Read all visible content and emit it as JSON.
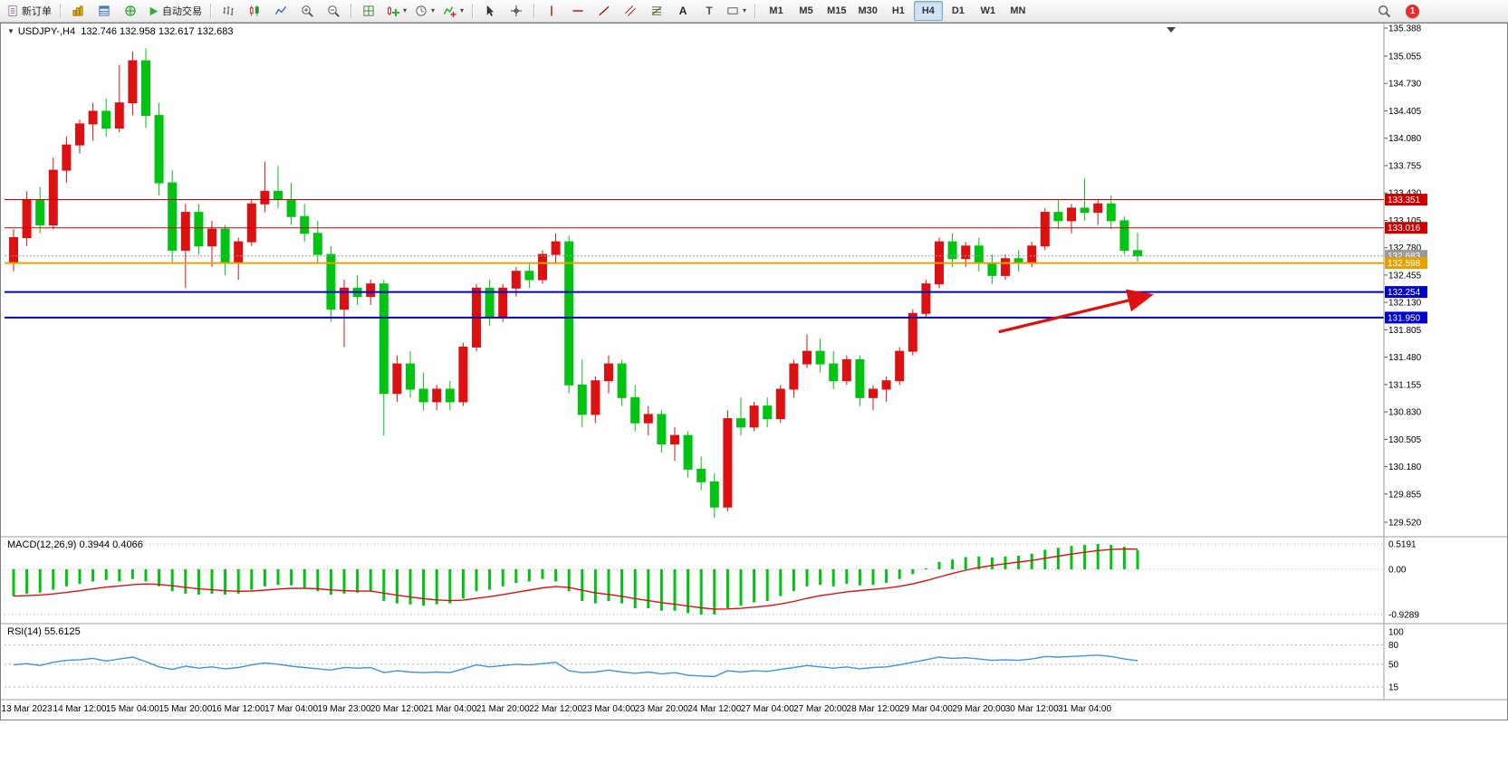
{
  "toolbar": {
    "new_order_label": "新订单",
    "autotrade_label": "自动交易",
    "timeframes": [
      "M1",
      "M5",
      "M15",
      "M30",
      "H1",
      "H4",
      "D1",
      "W1",
      "MN"
    ],
    "active_timeframe": "H4",
    "badge_count": "1"
  },
  "icons": {
    "caret": "▾",
    "collapse": "▼",
    "text_tool": "A",
    "label_tool": "T"
  },
  "chart": {
    "symbol_header": {
      "symbol": "USDJPY-,H4",
      "ohlc": "132.746 132.958 132.617 132.683"
    }
  },
  "chart_data": {
    "type": "candlestick",
    "symbol": "USDJPY-,H4",
    "timeframe": "H4",
    "colors": {
      "up": "#dd1111",
      "down": "#00c411",
      "background": "#ffffff",
      "border": "#808080"
    },
    "price_axis": {
      "min": 129.52,
      "max": 135.388,
      "ticks": [
        "135.388",
        "135.055",
        "134.730",
        "134.405",
        "134.080",
        "133.755",
        "133.430",
        "133.105",
        "132.780",
        "132.455",
        "132.130",
        "131.805",
        "131.480",
        "131.155",
        "130.830",
        "130.505",
        "130.180",
        "129.855",
        "129.520"
      ]
    },
    "time_labels": [
      "13 Mar 2023",
      "14 Mar 12:00",
      "15 Mar 04:00",
      "15 Mar 20:00",
      "16 Mar 12:00",
      "17 Mar 04:00",
      "19 Mar 23:00",
      "20 Mar 12:00",
      "21 Mar 04:00",
      "21 Mar 20:00",
      "22 Mar 12:00",
      "23 Mar 04:00",
      "23 Mar 20:00",
      "24 Mar 12:00",
      "27 Mar 04:00",
      "27 Mar 20:00",
      "28 Mar 12:00",
      "29 Mar 04:00",
      "29 Mar 20:00",
      "30 Mar 12:00",
      "31 Mar 04:00"
    ],
    "label_start_index": 1,
    "label_every": 4,
    "candles": [
      [
        132.6,
        133.0,
        132.5,
        132.9
      ],
      [
        132.9,
        133.45,
        132.8,
        133.35
      ],
      [
        133.35,
        133.5,
        132.95,
        133.05
      ],
      [
        133.05,
        133.85,
        133.0,
        133.7
      ],
      [
        133.7,
        134.1,
        133.55,
        134.0
      ],
      [
        134.0,
        134.3,
        133.9,
        134.25
      ],
      [
        134.25,
        134.5,
        134.05,
        134.4
      ],
      [
        134.4,
        134.55,
        134.1,
        134.2
      ],
      [
        134.2,
        134.95,
        134.15,
        134.5
      ],
      [
        134.5,
        135.11,
        134.35,
        135.0
      ],
      [
        135.0,
        135.15,
        134.2,
        134.35
      ],
      [
        134.35,
        134.5,
        133.4,
        133.55
      ],
      [
        133.55,
        133.7,
        132.6,
        132.75
      ],
      [
        132.75,
        133.3,
        132.3,
        133.2
      ],
      [
        133.2,
        133.3,
        132.7,
        132.8
      ],
      [
        132.8,
        133.1,
        132.55,
        133.0
      ],
      [
        133.0,
        133.05,
        132.45,
        132.6
      ],
      [
        132.6,
        132.9,
        132.4,
        132.85
      ],
      [
        132.85,
        133.35,
        132.8,
        133.3
      ],
      [
        133.3,
        133.8,
        133.2,
        133.45
      ],
      [
        133.45,
        133.75,
        133.25,
        133.35
      ],
      [
        133.35,
        133.55,
        133.05,
        133.15
      ],
      [
        133.15,
        133.3,
        132.85,
        132.95
      ],
      [
        132.95,
        133.1,
        132.6,
        132.7
      ],
      [
        132.7,
        132.8,
        131.9,
        132.05
      ],
      [
        132.05,
        132.4,
        131.6,
        132.3
      ],
      [
        132.3,
        132.45,
        132.1,
        132.2
      ],
      [
        132.2,
        132.4,
        132.1,
        132.35
      ],
      [
        132.35,
        132.4,
        130.55,
        131.05
      ],
      [
        131.05,
        131.5,
        130.95,
        131.4
      ],
      [
        131.4,
        131.55,
        131.0,
        131.1
      ],
      [
        131.1,
        131.3,
        130.85,
        130.95
      ],
      [
        130.95,
        131.15,
        130.85,
        131.1
      ],
      [
        131.1,
        131.2,
        130.85,
        130.95
      ],
      [
        130.95,
        131.65,
        130.9,
        131.6
      ],
      [
        131.6,
        132.35,
        131.55,
        132.3
      ],
      [
        132.3,
        132.4,
        131.85,
        131.95
      ],
      [
        131.95,
        132.35,
        131.9,
        132.3
      ],
      [
        132.3,
        132.55,
        132.2,
        132.5
      ],
      [
        132.5,
        132.6,
        132.3,
        132.4
      ],
      [
        132.4,
        132.75,
        132.35,
        132.7
      ],
      [
        132.7,
        132.95,
        132.6,
        132.85
      ],
      [
        132.85,
        132.92,
        131.05,
        131.15
      ],
      [
        131.15,
        131.45,
        130.65,
        130.8
      ],
      [
        130.8,
        131.25,
        130.7,
        131.2
      ],
      [
        131.2,
        131.5,
        131.05,
        131.4
      ],
      [
        131.4,
        131.45,
        130.9,
        131.0
      ],
      [
        131.0,
        131.15,
        130.6,
        130.7
      ],
      [
        130.7,
        130.9,
        130.55,
        130.8
      ],
      [
        130.8,
        130.85,
        130.35,
        130.45
      ],
      [
        130.45,
        130.65,
        130.25,
        130.55
      ],
      [
        130.55,
        130.6,
        130.05,
        130.15
      ],
      [
        130.15,
        130.3,
        129.9,
        130.0
      ],
      [
        130.0,
        130.1,
        129.57,
        129.7
      ],
      [
        129.7,
        130.85,
        129.65,
        130.75
      ],
      [
        130.75,
        131.0,
        130.55,
        130.65
      ],
      [
        130.65,
        130.95,
        130.6,
        130.9
      ],
      [
        130.9,
        131.0,
        130.65,
        130.75
      ],
      [
        130.75,
        131.15,
        130.7,
        131.1
      ],
      [
        131.1,
        131.45,
        131.0,
        131.4
      ],
      [
        131.4,
        131.75,
        131.35,
        131.55
      ],
      [
        131.55,
        131.7,
        131.3,
        131.4
      ],
      [
        131.4,
        131.55,
        131.1,
        131.2
      ],
      [
        131.2,
        131.5,
        131.15,
        131.45
      ],
      [
        131.45,
        131.5,
        130.9,
        131.0
      ],
      [
        131.0,
        131.15,
        130.85,
        131.1
      ],
      [
        131.1,
        131.25,
        130.95,
        131.2
      ],
      [
        131.2,
        131.6,
        131.15,
        131.55
      ],
      [
        131.55,
        132.05,
        131.5,
        132.0
      ],
      [
        132.0,
        132.4,
        131.95,
        132.35
      ],
      [
        132.35,
        132.9,
        132.3,
        132.85
      ],
      [
        132.85,
        132.95,
        132.55,
        132.65
      ],
      [
        132.65,
        132.85,
        132.55,
        132.8
      ],
      [
        132.8,
        132.9,
        132.5,
        132.6
      ],
      [
        132.6,
        132.7,
        132.35,
        132.45
      ],
      [
        132.45,
        132.7,
        132.4,
        132.65
      ],
      [
        132.65,
        132.75,
        132.5,
        132.6
      ],
      [
        132.6,
        132.85,
        132.55,
        132.8
      ],
      [
        132.8,
        133.25,
        132.75,
        133.2
      ],
      [
        133.2,
        133.35,
        133.0,
        133.1
      ],
      [
        133.1,
        133.3,
        132.95,
        133.25
      ],
      [
        133.25,
        133.6,
        133.1,
        133.2
      ],
      [
        133.2,
        133.35,
        133.05,
        133.3
      ],
      [
        133.3,
        133.4,
        133.0,
        133.1
      ],
      [
        133.1,
        133.15,
        132.7,
        132.75
      ],
      [
        132.746,
        132.958,
        132.617,
        132.683
      ]
    ],
    "hlines": [
      {
        "price": 133.351,
        "label": "133.351",
        "color": "#cc0000",
        "style": "solid",
        "width": 1
      },
      {
        "price": 133.016,
        "label": "133.016",
        "color": "#cc0000",
        "style": "solid",
        "width": 1
      },
      {
        "price": 132.683,
        "label": "132.683",
        "color": "#9a9a9a",
        "style": "dot",
        "width": 1
      },
      {
        "price": 132.598,
        "label": "132.598",
        "color": "#e8a000",
        "style": "solid",
        "width": 2
      },
      {
        "price": 132.254,
        "label": "132.254",
        "color": "#0000cd",
        "style": "solid",
        "width": 2
      },
      {
        "price": 131.95,
        "label": "131.950",
        "color": "#0000cd",
        "style": "solid",
        "width": 2
      }
    ],
    "arrow": {
      "from": {
        "index": 74.5,
        "price": 131.78
      },
      "to": {
        "index": 85.8,
        "price": 132.21
      },
      "color": "#e01010"
    },
    "indicators": [
      {
        "name": "MACD",
        "header": "MACD(12,26,9) 0.3944 0.4066",
        "axis_labels": [
          "0.5191",
          "0.00",
          "-0.9289"
        ],
        "max": 0.5191,
        "min": -0.9289,
        "signal_period": 9,
        "colors": {
          "histogram": "#00c411",
          "signal": "#dd1111"
        },
        "histogram": [
          -0.55,
          -0.5,
          -0.48,
          -0.42,
          -0.35,
          -0.3,
          -0.25,
          -0.22,
          -0.25,
          -0.2,
          -0.25,
          -0.35,
          -0.45,
          -0.5,
          -0.52,
          -0.5,
          -0.52,
          -0.5,
          -0.42,
          -0.35,
          -0.32,
          -0.33,
          -0.38,
          -0.45,
          -0.52,
          -0.5,
          -0.48,
          -0.45,
          -0.65,
          -0.7,
          -0.72,
          -0.75,
          -0.72,
          -0.7,
          -0.6,
          -0.45,
          -0.42,
          -0.35,
          -0.28,
          -0.25,
          -0.2,
          -0.25,
          -0.45,
          -0.65,
          -0.7,
          -0.65,
          -0.7,
          -0.8,
          -0.8,
          -0.85,
          -0.85,
          -0.9,
          -0.93,
          -0.93,
          -0.8,
          -0.75,
          -0.68,
          -0.65,
          -0.55,
          -0.45,
          -0.35,
          -0.32,
          -0.35,
          -0.3,
          -0.33,
          -0.32,
          -0.28,
          -0.2,
          -0.1,
          0.02,
          0.15,
          0.2,
          0.25,
          0.26,
          0.24,
          0.26,
          0.28,
          0.32,
          0.4,
          0.44,
          0.48,
          0.5,
          0.52,
          0.5,
          0.46,
          0.3944
        ]
      },
      {
        "name": "RSI",
        "header": "RSI(14) 55.6125",
        "axis_labels": [
          "100",
          "80",
          "50",
          "15"
        ],
        "levels": [
          80,
          50,
          15
        ],
        "color": "#3c96dc",
        "values": [
          49,
          51,
          48,
          53,
          56,
          57,
          59,
          55,
          58,
          61,
          54,
          46,
          42,
          47,
          44,
          46,
          43,
          45,
          49,
          52,
          50,
          47,
          45,
          43,
          41,
          45,
          44,
          45,
          37,
          40,
          38,
          37,
          38,
          37,
          43,
          49,
          46,
          48,
          50,
          49,
          51,
          53,
          40,
          37,
          38,
          41,
          38,
          36,
          38,
          35,
          37,
          33,
          32,
          31,
          40,
          38,
          40,
          39,
          42,
          45,
          48,
          46,
          44,
          46,
          43,
          45,
          46,
          49,
          53,
          57,
          61,
          59,
          60,
          58,
          56,
          57,
          56,
          58,
          62,
          61,
          62,
          63,
          64,
          62,
          58,
          55.6
        ]
      }
    ]
  }
}
